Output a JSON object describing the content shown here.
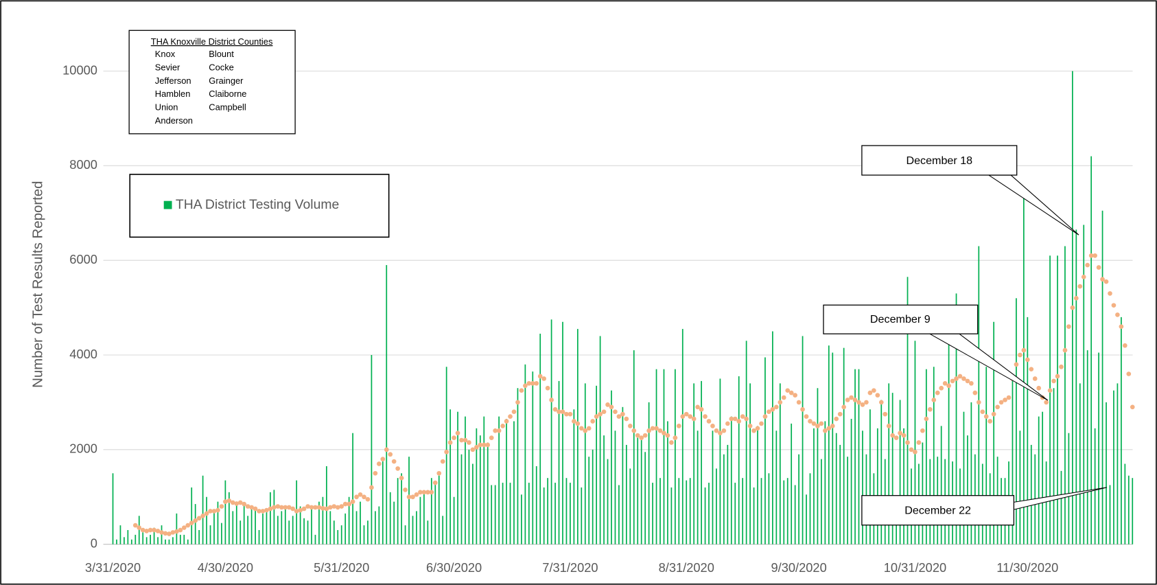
{
  "chart_data": {
    "type": "bar",
    "y_label": "Number of Test Results Reported",
    "ylim": [
      0,
      11000
    ],
    "yticks": [
      0,
      2000,
      4000,
      6000,
      8000,
      10000
    ],
    "grid": true,
    "categories": [
      "3/31/2020",
      null,
      null,
      null,
      null,
      null,
      null,
      null,
      null,
      null,
      null,
      null,
      null,
      null,
      null,
      null,
      null,
      null,
      null,
      null,
      null,
      null,
      null,
      null,
      null,
      null,
      null,
      null,
      null,
      null,
      "4/30/2020",
      null,
      null,
      null,
      null,
      null,
      null,
      null,
      null,
      null,
      null,
      null,
      null,
      null,
      null,
      null,
      null,
      null,
      null,
      null,
      null,
      null,
      null,
      null,
      null,
      null,
      null,
      null,
      null,
      null,
      null,
      "5/31/2020",
      null,
      null,
      null,
      null,
      null,
      null,
      null,
      null,
      null,
      null,
      null,
      null,
      null,
      null,
      null,
      null,
      null,
      null,
      null,
      null,
      null,
      null,
      null,
      null,
      null,
      null,
      null,
      null,
      null,
      "6/30/2020",
      null,
      null,
      null,
      null,
      null,
      null,
      null,
      null,
      null,
      null,
      null,
      null,
      null,
      null,
      null,
      null,
      null,
      null,
      null,
      null,
      null,
      null,
      null,
      null,
      null,
      null,
      null,
      null,
      null,
      null,
      "7/31/2020",
      null,
      null,
      null,
      null,
      null,
      null,
      null,
      null,
      null,
      null,
      null,
      null,
      null,
      null,
      null,
      null,
      null,
      null,
      null,
      null,
      null,
      null,
      null,
      null,
      null,
      null,
      null,
      null,
      null,
      null,
      "8/31/2020",
      null,
      null,
      null,
      null,
      null,
      null,
      null,
      null,
      null,
      null,
      null,
      null,
      null,
      null,
      null,
      null,
      null,
      null,
      null,
      null,
      null,
      null,
      null,
      null,
      null,
      null,
      null,
      null,
      null,
      "9/30/2020",
      null,
      null,
      null,
      null,
      null,
      null,
      null,
      null,
      null,
      null,
      null,
      null,
      null,
      null,
      null,
      null,
      null,
      null,
      null,
      null,
      null,
      null,
      null,
      null,
      null,
      null,
      null,
      null,
      null,
      null,
      "10/31/2020",
      null,
      null,
      null,
      null,
      null,
      null,
      null,
      null,
      null,
      null,
      null,
      null,
      null,
      null,
      null,
      null,
      null,
      null,
      null,
      null,
      null,
      null,
      null,
      null,
      null,
      null,
      null,
      null,
      null,
      "11/30/2020",
      null,
      null,
      null,
      null,
      null,
      null,
      null,
      null,
      null,
      null,
      null,
      null,
      null,
      null,
      null,
      null,
      null,
      null,
      null,
      null,
      null,
      null,
      null,
      null,
      null,
      null,
      null,
      null
    ],
    "series": [
      {
        "name": "THA District Testing Volume",
        "color": "#00b050",
        "values": [
          1500,
          100,
          400,
          150,
          300,
          100,
          200,
          600,
          250,
          150,
          200,
          350,
          150,
          400,
          100,
          100,
          150,
          650,
          200,
          200,
          100,
          1200,
          850,
          300,
          1450,
          1000,
          400,
          700,
          900,
          450,
          1350,
          1100,
          700,
          900,
          500,
          850,
          600,
          800,
          750,
          300,
          650,
          700,
          1100,
          1150,
          600,
          700,
          800,
          500,
          600,
          1350,
          800,
          550,
          500,
          800,
          200,
          900,
          1000,
          1650,
          700,
          500,
          300,
          400,
          650,
          1000,
          2350,
          700,
          900,
          400,
          500,
          4000,
          700,
          800,
          1750,
          5900,
          1100,
          900,
          1400,
          1500,
          400,
          1850,
          600,
          700,
          1000,
          1100,
          500,
          1400,
          1300,
          1450,
          600,
          3750,
          2850,
          1000,
          2800,
          1900,
          2700,
          2000,
          1700,
          2450,
          2300,
          2700,
          2150,
          1250,
          1250,
          2700,
          1300,
          2650,
          1300,
          2600,
          3300,
          1050,
          3800,
          1300,
          3650,
          1650,
          4450,
          1200,
          1400,
          4750,
          1300,
          3450,
          4700,
          1400,
          1300,
          2850,
          4550,
          1200,
          3400,
          1850,
          2000,
          3350,
          4400,
          2300,
          1800,
          3250,
          2400,
          1250,
          2900,
          2100,
          1600,
          4100,
          2250,
          2200,
          1950,
          3000,
          1300,
          3700,
          1400,
          3700,
          2600,
          1200,
          3700,
          1400,
          4550,
          1350,
          1400,
          3400,
          2400,
          3450,
          1200,
          1300,
          2400,
          1600,
          3500,
          1900,
          2100,
          2700,
          1300,
          3550,
          1400,
          4300,
          3400,
          1200,
          2500,
          1400,
          3950,
          1500,
          4500,
          2400,
          3400,
          1350,
          1400,
          2550,
          1250,
          1900,
          4400,
          1050,
          1500,
          2450,
          3300,
          1800,
          2600,
          4200,
          4050,
          2350,
          2100,
          4150,
          1850,
          2650,
          3700,
          3700,
          2400,
          1900,
          2850,
          1500,
          2450,
          3050,
          1800,
          3400,
          3200,
          550,
          3050,
          2450,
          5650,
          1600,
          4300,
          1700,
          2150,
          3700,
          1800,
          3750,
          1850,
          2500,
          1800,
          5050,
          1750,
          5300,
          1600,
          2800,
          2300,
          3000,
          1900,
          6300,
          1700,
          3750,
          1500,
          4700,
          1850,
          1400,
          1400,
          1750,
          3500,
          5200,
          2400,
          7450,
          4800,
          2100,
          1900,
          2700,
          2800,
          1750,
          6100,
          3300,
          6100,
          1550,
          6300,
          2350,
          10000,
          6650,
          3400,
          6750,
          4100,
          8200,
          2450,
          4050,
          7050,
          3000,
          1250,
          3250,
          3400,
          4800,
          1700,
          1450,
          1400
        ]
      },
      {
        "style": "dots",
        "color": "#f4b183",
        "values": [
          null,
          null,
          null,
          null,
          null,
          null,
          400,
          350,
          300,
          280,
          300,
          300,
          280,
          250,
          230,
          220,
          250,
          270,
          300,
          350,
          400,
          450,
          500,
          550,
          600,
          650,
          700,
          700,
          720,
          800,
          900,
          920,
          880,
          860,
          880,
          850,
          800,
          780,
          750,
          700,
          700,
          720,
          750,
          780,
          800,
          780,
          780,
          780,
          750,
          700,
          720,
          750,
          800,
          780,
          780,
          780,
          760,
          750,
          780,
          800,
          780,
          800,
          850,
          850,
          900,
          1000,
          1050,
          1000,
          950,
          1200,
          1500,
          1700,
          1800,
          2000,
          1900,
          1750,
          1600,
          1400,
          1150,
          1000,
          1000,
          1050,
          1100,
          1100,
          1100,
          1100,
          1300,
          1500,
          1750,
          1950,
          2150,
          2250,
          2350,
          2200,
          2200,
          2150,
          2000,
          2050,
          2100,
          2100,
          2100,
          2250,
          2400,
          2400,
          2500,
          2600,
          2700,
          2800,
          3000,
          3250,
          3350,
          3400,
          3400,
          3400,
          3550,
          3500,
          3300,
          3050,
          2850,
          2800,
          2800,
          2750,
          2750,
          2600,
          2550,
          2450,
          2400,
          2450,
          2600,
          2700,
          2750,
          2800,
          2950,
          2900,
          2800,
          2700,
          2750,
          2650,
          2500,
          2400,
          2300,
          2250,
          2300,
          2400,
          2450,
          2450,
          2400,
          2350,
          2300,
          2150,
          2250,
          2500,
          2700,
          2750,
          2700,
          2650,
          2900,
          2850,
          2700,
          2600,
          2500,
          2400,
          2350,
          2400,
          2550,
          2650,
          2650,
          2600,
          2700,
          2650,
          2500,
          2400,
          2450,
          2550,
          2700,
          2800,
          2850,
          2900,
          3000,
          3100,
          3250,
          3200,
          3150,
          3000,
          2850,
          2700,
          2600,
          2550,
          2500,
          2550,
          2400,
          2450,
          2500,
          2650,
          2750,
          2900,
          3050,
          3100,
          3050,
          3000,
          2950,
          3000,
          3200,
          3250,
          3150,
          3000,
          2750,
          2500,
          2300,
          2250,
          2350,
          2300,
          2150,
          2000,
          1950,
          2150,
          2400,
          2650,
          2850,
          3050,
          3200,
          3300,
          3400,
          3350,
          3450,
          3500,
          3550,
          3500,
          3450,
          3400,
          3200,
          3000,
          2800,
          2700,
          2600,
          2750,
          2900,
          3000,
          3050,
          3100,
          3500,
          3800,
          4000,
          4100,
          3900,
          3700,
          3500,
          3300,
          3100,
          3000,
          3250,
          3450,
          3550,
          3750,
          4100,
          4600,
          5000,
          5200,
          5450,
          5650,
          5900,
          6100,
          6100,
          5850,
          5600,
          5550,
          5300,
          5050,
          4850,
          4600,
          4200,
          3600,
          2900
        ]
      }
    ],
    "counties_box": {
      "title": "THA Knoxville District Counties",
      "columns": [
        [
          "Knox",
          "Sevier",
          "Jefferson",
          "Hamblen",
          "Union",
          "Anderson"
        ],
        [
          "Blount",
          "Cocke",
          "Grainger",
          "Claiborne",
          "Campbell"
        ]
      ]
    },
    "annotations": [
      {
        "text": "December 18"
      },
      {
        "text": "December 9"
      },
      {
        "text": "December 22"
      }
    ]
  }
}
